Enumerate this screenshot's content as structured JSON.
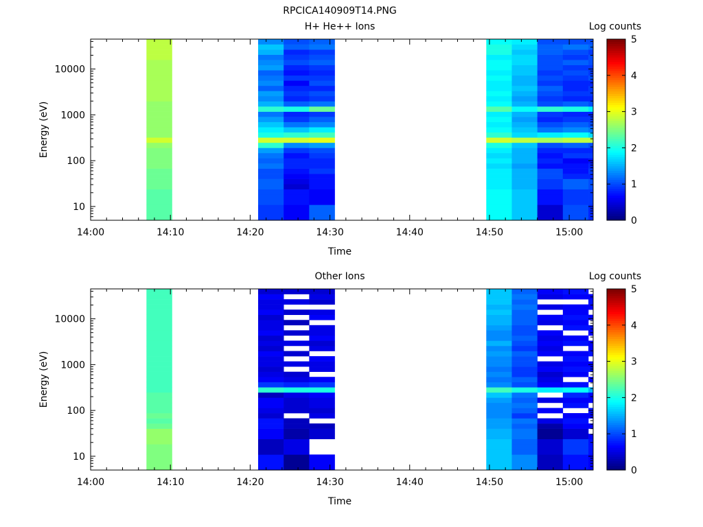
{
  "figure_title": "RPCICA140909T14.PNG",
  "colorbar": {
    "label": "Log counts",
    "ticks": [
      "0",
      "1",
      "2",
      "3",
      "4",
      "5"
    ],
    "range": [
      0,
      5
    ],
    "colormap": "jet"
  },
  "chart_data": [
    {
      "type": "heatmap",
      "title": "H+ He++ Ions",
      "xlabel": "Time",
      "ylabel": "Energy (eV)",
      "x_ticks": [
        "14:00",
        "14:10",
        "14:20",
        "14:30",
        "14:40",
        "14:50",
        "15:00"
      ],
      "y_ticks": [
        "10",
        "100",
        "1000",
        "10000"
      ],
      "y_scale": "log",
      "ylim": [
        5,
        45000
      ],
      "xlim": [
        "14:00",
        "15:03"
      ],
      "blocks": [
        {
          "t_start": "14:07.0",
          "t_end": "14:10.2",
          "levels": [
            2.3,
            2.3,
            2.3,
            2.3,
            2.3,
            2.3,
            2.4,
            2.4,
            2.4,
            2.4,
            2.5,
            2.5,
            2.5,
            2.5,
            2.6,
            2.9,
            2.6,
            2.6,
            2.6,
            2.6,
            2.6,
            2.6,
            2.6,
            2.7,
            2.7,
            2.7,
            2.7,
            2.7,
            2.7,
            2.7,
            2.7,
            2.8,
            2.8,
            2.8,
            2.8
          ]
        },
        {
          "t_start": "14:21.0",
          "t_end": "14:24.2",
          "levels": [
            0.9,
            0.9,
            0.9,
            1.0,
            1.0,
            1.0,
            1.1,
            1.1,
            1.0,
            1.0,
            1.2,
            1.1,
            1.2,
            1.4,
            2.1,
            2.9,
            2.0,
            1.8,
            1.6,
            1.4,
            1.2,
            2.1,
            1.5,
            1.3,
            1.4,
            1.1,
            1.3,
            1.2,
            1.1,
            1.4,
            1.3,
            1.2,
            1.5,
            1.6,
            1.3
          ]
        },
        {
          "t_start": "14:24.2",
          "t_end": "14:27.4",
          "levels": [
            0.6,
            0.6,
            0.6,
            0.7,
            0.7,
            0.7,
            0.4,
            0.5,
            0.6,
            0.7,
            0.8,
            0.8,
            0.7,
            0.9,
            1.3,
            2.9,
            2.1,
            1.6,
            1.2,
            0.9,
            0.8,
            2.0,
            1.1,
            0.8,
            0.9,
            0.8,
            0.6,
            0.9,
            0.7,
            0.8,
            1.0,
            0.9,
            0.8,
            1.1,
            1.0
          ]
        },
        {
          "t_start": "14:27.4",
          "t_end": "14:30.6",
          "levels": [
            1.1,
            1.1,
            1.1,
            0.6,
            0.6,
            0.6,
            0.7,
            0.7,
            0.7,
            0.9,
            0.8,
            0.8,
            0.9,
            1.0,
            1.4,
            3.0,
            2.2,
            1.8,
            1.3,
            1.1,
            0.9,
            2.4,
            1.2,
            0.9,
            1.0,
            0.8,
            1.0,
            0.9,
            0.8,
            0.9,
            1.1,
            1.0,
            0.9,
            1.2,
            1.1
          ]
        },
        {
          "t_start": "14:49.6",
          "t_end": "14:52.8",
          "levels": [
            1.9,
            1.9,
            1.9,
            1.9,
            1.9,
            1.9,
            1.8,
            1.8,
            1.8,
            1.8,
            1.7,
            1.8,
            1.7,
            1.8,
            2.0,
            2.9,
            2.1,
            1.9,
            1.8,
            1.9,
            1.8,
            2.3,
            1.9,
            1.8,
            1.9,
            1.8,
            1.8,
            1.9,
            1.8,
            1.9,
            1.9,
            1.8,
            2.0,
            2.0,
            1.9
          ]
        },
        {
          "t_start": "14:52.8",
          "t_end": "14:56.0",
          "levels": [
            1.6,
            1.6,
            1.6,
            1.6,
            1.6,
            1.6,
            1.5,
            1.5,
            1.5,
            1.5,
            1.4,
            1.5,
            1.5,
            1.5,
            1.6,
            2.8,
            1.7,
            1.6,
            1.5,
            1.4,
            1.5,
            1.9,
            1.5,
            1.4,
            1.5,
            1.6,
            1.5,
            1.5,
            1.6,
            1.6,
            1.7,
            1.7,
            1.6,
            1.7,
            1.8
          ]
        },
        {
          "t_start": "14:56.0",
          "t_end": "14:59.2",
          "levels": [
            0.4,
            0.4,
            0.4,
            0.7,
            0.7,
            0.7,
            0.9,
            0.9,
            1.0,
            1.0,
            0.7,
            0.8,
            0.7,
            0.8,
            1.0,
            2.7,
            1.8,
            1.2,
            1.0,
            0.8,
            0.9,
            2.1,
            1.0,
            0.9,
            1.0,
            1.1,
            0.9,
            1.0,
            0.9,
            1.0,
            1.0,
            1.0,
            1.1,
            1.1,
            1.0
          ]
        },
        {
          "t_start": "14:59.2",
          "t_end": "15:02.4",
          "levels": [
            1.0,
            1.0,
            1.0,
            0.9,
            0.9,
            0.9,
            1.1,
            1.1,
            0.8,
            0.7,
            0.7,
            0.6,
            0.9,
            0.8,
            1.1,
            2.8,
            1.9,
            1.3,
            1.1,
            0.9,
            0.8,
            2.0,
            1.1,
            0.8,
            0.9,
            0.8,
            0.8,
            0.9,
            1.0,
            0.9,
            1.1,
            0.9,
            1.0,
            1.2,
            1.0
          ]
        },
        {
          "t_start": "15:02.4",
          "t_end": "15:03.0",
          "levels": [
            0.8,
            0.8,
            0.8,
            0.9,
            0.9,
            0.9,
            1.0,
            1.0,
            0.8,
            0.9,
            0.8,
            0.7,
            0.9,
            0.8,
            1.0,
            2.8,
            1.7,
            1.2,
            1.0,
            0.9,
            0.8,
            1.8,
            1.0,
            0.8,
            0.9,
            0.9,
            0.8,
            1.0,
            0.9,
            0.9,
            1.0,
            1.0,
            0.9,
            1.1,
            1.0
          ]
        }
      ]
    },
    {
      "type": "heatmap",
      "title": "Other Ions",
      "xlabel": "Time",
      "ylabel": "Energy (eV)",
      "x_ticks": [
        "14:00",
        "14:10",
        "14:20",
        "14:30",
        "14:40",
        "14:50",
        "15:00"
      ],
      "y_ticks": [
        "10",
        "100",
        "1000",
        "10000"
      ],
      "y_scale": "log",
      "ylim": [
        5,
        45000
      ],
      "xlim": [
        "14:00",
        "15:03"
      ],
      "blocks": [
        {
          "t_start": "14:07.0",
          "t_end": "14:10.2",
          "levels": [
            2.5,
            2.5,
            2.5,
            2.5,
            2.5,
            2.6,
            2.6,
            2.6,
            2.4,
            2.3,
            2.4,
            2.3,
            2.3,
            2.3,
            2.3,
            2.2,
            2.2,
            2.2,
            2.2,
            2.2,
            2.2,
            2.2,
            2.2,
            2.2,
            2.2,
            2.2,
            2.2,
            2.2,
            2.2,
            2.2,
            2.2,
            2.2,
            2.2,
            2.2,
            2.2
          ]
        },
        {
          "t_start": "14:21.0",
          "t_end": "14:24.2",
          "levels": [
            0.7,
            0.7,
            0.7,
            0.3,
            0.3,
            0.3,
            0.6,
            0.6,
            0.7,
            0.7,
            0.4,
            0.5,
            0.6,
            0.6,
            0.3,
            2.1,
            0.9,
            0.6,
            0.5,
            0.4,
            0.5,
            0.5,
            0.6,
            0.4,
            0.5,
            0.4,
            0.6,
            0.5,
            0.5,
            0.4,
            0.6,
            0.5,
            0.5,
            0.6,
            0.4
          ]
        },
        {
          "t_start": "14:24.2",
          "t_end": "14:27.4",
          "levels": [
            0.1,
            0.1,
            0.1,
            0.5,
            0.5,
            0.5,
            0.2,
            0.2,
            0.3,
            0.3,
            -1,
            0.4,
            0.4,
            0.4,
            0.5,
            2.0,
            0.8,
            0.5,
            0.4,
            -1,
            0.5,
            -1,
            0.4,
            -1,
            0.5,
            -1,
            0.4,
            -1,
            0.3,
            -1,
            0.4,
            -1,
            0.5,
            -1,
            0.4
          ]
        },
        {
          "t_start": "14:27.4",
          "t_end": "14:30.6",
          "levels": [
            0.6,
            0.6,
            0.6,
            -1,
            -1,
            -1,
            0.4,
            0.4,
            0.3,
            -1,
            0.5,
            0.4,
            0.5,
            0.5,
            0.6,
            2.0,
            0.9,
            0.6,
            -1,
            0.5,
            0.5,
            0.6,
            -1,
            0.5,
            0.4,
            0.6,
            0.5,
            0.5,
            -1,
            0.6,
            0.5,
            -1,
            0.4,
            0.5,
            0.4
          ]
        },
        {
          "t_start": "14:49.6",
          "t_end": "14:52.8",
          "levels": [
            1.6,
            1.6,
            1.6,
            1.6,
            1.6,
            1.6,
            1.5,
            1.5,
            1.4,
            1.4,
            1.3,
            1.3,
            1.3,
            1.4,
            1.6,
            2.2,
            1.3,
            1.2,
            1.3,
            1.2,
            1.3,
            1.3,
            1.4,
            1.3,
            1.5,
            1.3,
            1.3,
            1.4,
            1.5,
            1.5,
            1.6,
            1.5,
            1.6,
            1.6,
            1.6
          ]
        },
        {
          "t_start": "14:52.8",
          "t_end": "14:56.0",
          "levels": [
            1.3,
            1.3,
            1.3,
            1.1,
            1.1,
            1.1,
            1.2,
            1.2,
            1.1,
            1.2,
            0.9,
            1.1,
            1.2,
            1.1,
            1.2,
            2.0,
            1.0,
            1.1,
            0.9,
            0.9,
            1.0,
            1.0,
            1.1,
            0.9,
            1.0,
            1.1,
            1.0,
            1.0,
            1.1,
            1.1,
            1.1,
            1.2,
            1.1,
            1.2,
            1.1
          ]
        },
        {
          "t_start": "14:56.0",
          "t_end": "14:59.2",
          "levels": [
            0.3,
            0.3,
            0.3,
            0.4,
            0.4,
            0.4,
            0.1,
            0.1,
            0.2,
            0.5,
            -1,
            0.6,
            -1,
            0.5,
            -1,
            1.8,
            0.6,
            0.5,
            0.4,
            0.6,
            0.5,
            -1,
            0.6,
            0.5,
            0.6,
            0.5,
            0.6,
            -1,
            0.5,
            0.6,
            -1,
            0.5,
            -1,
            0.5,
            0.6
          ]
        },
        {
          "t_start": "14:59.2",
          "t_end": "15:02.4",
          "levels": [
            0.7,
            0.7,
            0.7,
            0.9,
            0.9,
            0.9,
            0.4,
            0.4,
            0.6,
            0.7,
            0.6,
            -1,
            0.7,
            0.6,
            0.8,
            1.9,
            0.7,
            -1,
            0.6,
            0.7,
            0.6,
            0.7,
            0.6,
            -1,
            0.7,
            0.6,
            -1,
            0.7,
            0.6,
            0.7,
            0.6,
            0.6,
            -1,
            0.6,
            0.7
          ]
        },
        {
          "t_start": "15:02.4",
          "t_end": "15:03.0",
          "levels": [
            0.6,
            0.6,
            0.6,
            0.7,
            0.7,
            0.7,
            0.6,
            -1,
            0.6,
            -1,
            0.6,
            0.7,
            -1,
            0.6,
            0.6,
            1.5,
            -1,
            0.6,
            -1,
            0.7,
            0.6,
            -1,
            0.7,
            0.6,
            0.6,
            -1,
            0.6,
            0.7,
            -1,
            0.6,
            -1,
            0.6,
            0.7,
            0.6,
            -1
          ]
        }
      ]
    }
  ]
}
